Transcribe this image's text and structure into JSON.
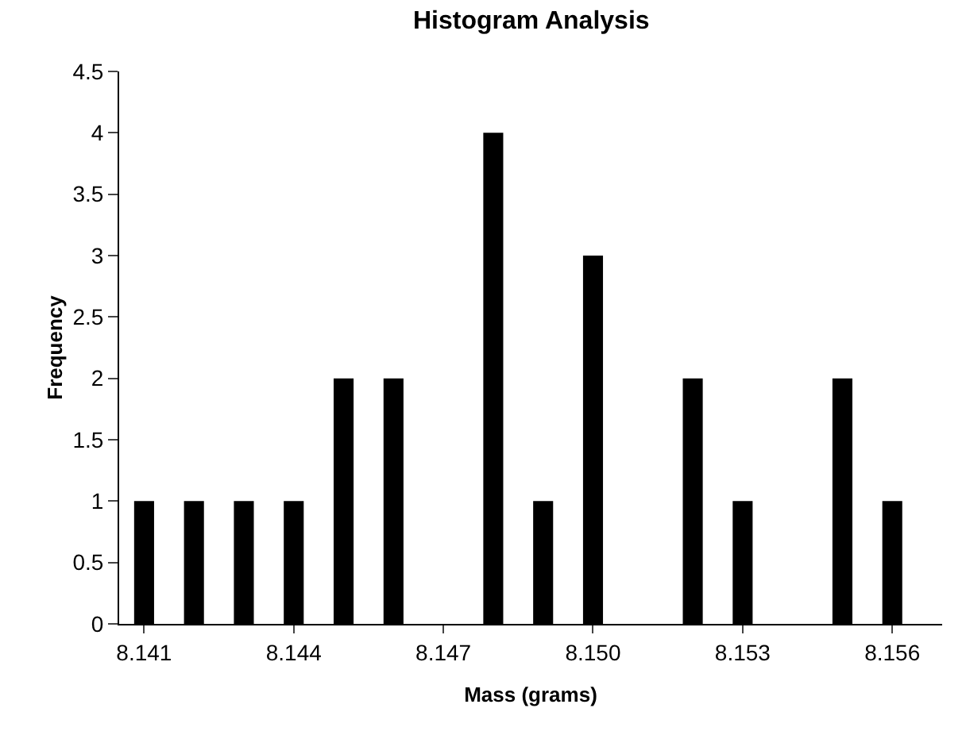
{
  "chart_data": {
    "type": "bar",
    "title": "Histogram Analysis",
    "xlabel": "Mass (grams)",
    "ylabel": "Frequency",
    "categories": [
      "8.141",
      null,
      null,
      "8.144",
      null,
      null,
      "8.147",
      null,
      null,
      "8.150",
      null,
      null,
      "8.153",
      null,
      null,
      "8.156"
    ],
    "values": [
      1,
      1,
      1,
      1,
      2,
      2,
      0,
      4,
      1,
      3,
      0,
      2,
      1,
      0,
      2,
      1
    ],
    "color": "#000000",
    "ylim": [
      0,
      4.5
    ],
    "yticks": [
      0,
      0.5,
      1,
      1.5,
      2,
      2.5,
      3,
      3.5,
      4,
      4.5
    ],
    "grid": false
  }
}
